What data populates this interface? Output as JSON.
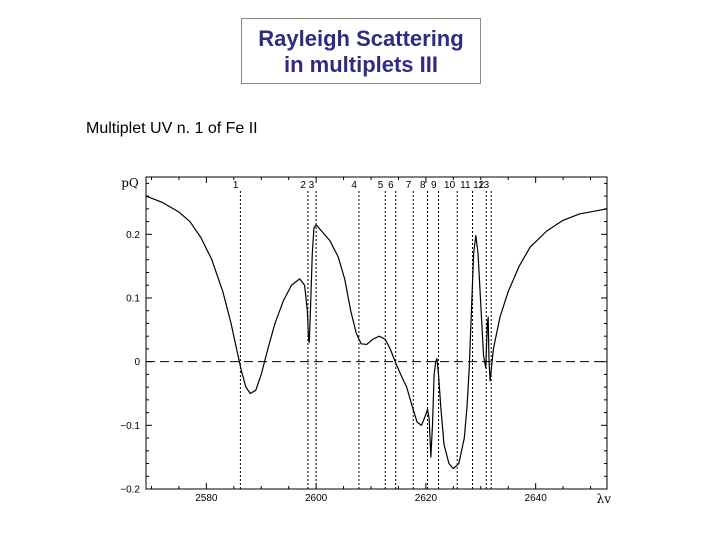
{
  "header": {
    "title_line1": "Rayleigh Scattering",
    "title_line2": "in multiplets III"
  },
  "subtitle": "Multiplet UV n. 1 of Fe II",
  "colors": {
    "title_text": "#2d2b86",
    "title_border": "#8a8a8a",
    "curve": "#000000"
  },
  "chart_data": {
    "type": "line",
    "title": "",
    "xlabel": "λv",
    "ylabel": "pQ",
    "xlim": [
      2569,
      2653
    ],
    "ylim": [
      -0.2,
      0.29
    ],
    "xticks": [
      2580,
      2600,
      2620,
      2640
    ],
    "xtick_labels": [
      "2580",
      "2600",
      "2620",
      "2640"
    ],
    "yticks": [
      -0.2,
      -0.1,
      0,
      0.1,
      0.2
    ],
    "ytick_labels": [
      "−0.2",
      "−0.1",
      "0",
      "0.1",
      "0.2"
    ],
    "zero_line": {
      "y": 0,
      "style": "dashed"
    },
    "line_markers": [
      {
        "label": "1",
        "x": 2586.2
      },
      {
        "label": "2",
        "x": 2598.5
      },
      {
        "label": "3",
        "x": 2600.0
      },
      {
        "label": "4",
        "x": 2607.8
      },
      {
        "label": "5",
        "x": 2612.6
      },
      {
        "label": "6",
        "x": 2614.5
      },
      {
        "label": "7",
        "x": 2617.7
      },
      {
        "label": "8",
        "x": 2620.3
      },
      {
        "label": "9",
        "x": 2622.3
      },
      {
        "label": "10",
        "x": 2625.7
      },
      {
        "label": "11",
        "x": 2628.5
      },
      {
        "label": "12",
        "x": 2631.0
      },
      {
        "label": "13",
        "x": 2631.9
      }
    ],
    "series": [
      {
        "points": [
          [
            2569,
            0.26
          ],
          [
            2572,
            0.25
          ],
          [
            2575,
            0.235
          ],
          [
            2577,
            0.22
          ],
          [
            2579,
            0.195
          ],
          [
            2581,
            0.16
          ],
          [
            2583,
            0.11
          ],
          [
            2584.5,
            0.06
          ],
          [
            2585.5,
            0.02
          ],
          [
            2586.4,
            -0.015
          ],
          [
            2587.2,
            -0.04
          ],
          [
            2588.0,
            -0.05
          ],
          [
            2589.0,
            -0.045
          ],
          [
            2590.0,
            -0.02
          ],
          [
            2591.2,
            0.02
          ],
          [
            2592.5,
            0.06
          ],
          [
            2594.0,
            0.095
          ],
          [
            2595.5,
            0.12
          ],
          [
            2597.0,
            0.13
          ],
          [
            2597.9,
            0.12
          ],
          [
            2598.4,
            0.08
          ],
          [
            2598.6,
            0.04
          ],
          [
            2598.75,
            0.03
          ],
          [
            2599.0,
            0.09
          ],
          [
            2599.3,
            0.17
          ],
          [
            2599.6,
            0.21
          ],
          [
            2600.0,
            0.215
          ],
          [
            2601.0,
            0.205
          ],
          [
            2602.5,
            0.19
          ],
          [
            2604.0,
            0.165
          ],
          [
            2605.2,
            0.13
          ],
          [
            2606.3,
            0.08
          ],
          [
            2607.3,
            0.045
          ],
          [
            2608.2,
            0.028
          ],
          [
            2609.2,
            0.027
          ],
          [
            2610.3,
            0.035
          ],
          [
            2611.5,
            0.04
          ],
          [
            2612.6,
            0.035
          ],
          [
            2613.5,
            0.02
          ],
          [
            2614.4,
            0.0
          ],
          [
            2615.4,
            -0.02
          ],
          [
            2616.5,
            -0.04
          ],
          [
            2617.5,
            -0.07
          ],
          [
            2618.4,
            -0.095
          ],
          [
            2619.2,
            -0.1
          ],
          [
            2619.9,
            -0.085
          ],
          [
            2620.3,
            -0.075
          ],
          [
            2620.6,
            -0.09
          ],
          [
            2620.9,
            -0.15
          ],
          [
            2621.2,
            -0.1
          ],
          [
            2621.5,
            -0.02
          ],
          [
            2621.8,
            0.0
          ],
          [
            2622.0,
            0.005
          ],
          [
            2622.3,
            -0.02
          ],
          [
            2622.7,
            -0.07
          ],
          [
            2623.3,
            -0.13
          ],
          [
            2624.2,
            -0.16
          ],
          [
            2625.0,
            -0.168
          ],
          [
            2626.0,
            -0.16
          ],
          [
            2627.0,
            -0.12
          ],
          [
            2627.5,
            -0.07
          ],
          [
            2627.9,
            -0.01
          ],
          [
            2628.3,
            0.08
          ],
          [
            2628.7,
            0.17
          ],
          [
            2629.1,
            0.198
          ],
          [
            2629.5,
            0.17
          ],
          [
            2630.0,
            0.09
          ],
          [
            2630.5,
            0.01
          ],
          [
            2630.9,
            -0.01
          ],
          [
            2631.2,
            0.06
          ],
          [
            2631.35,
            0.07
          ],
          [
            2631.5,
            0.0
          ],
          [
            2631.7,
            -0.03
          ],
          [
            2632.3,
            0.02
          ],
          [
            2633.5,
            0.07
          ],
          [
            2635.0,
            0.11
          ],
          [
            2637.0,
            0.15
          ],
          [
            2639.0,
            0.18
          ],
          [
            2642.0,
            0.205
          ],
          [
            2645.0,
            0.222
          ],
          [
            2648.0,
            0.232
          ],
          [
            2653.0,
            0.24
          ]
        ]
      }
    ]
  }
}
